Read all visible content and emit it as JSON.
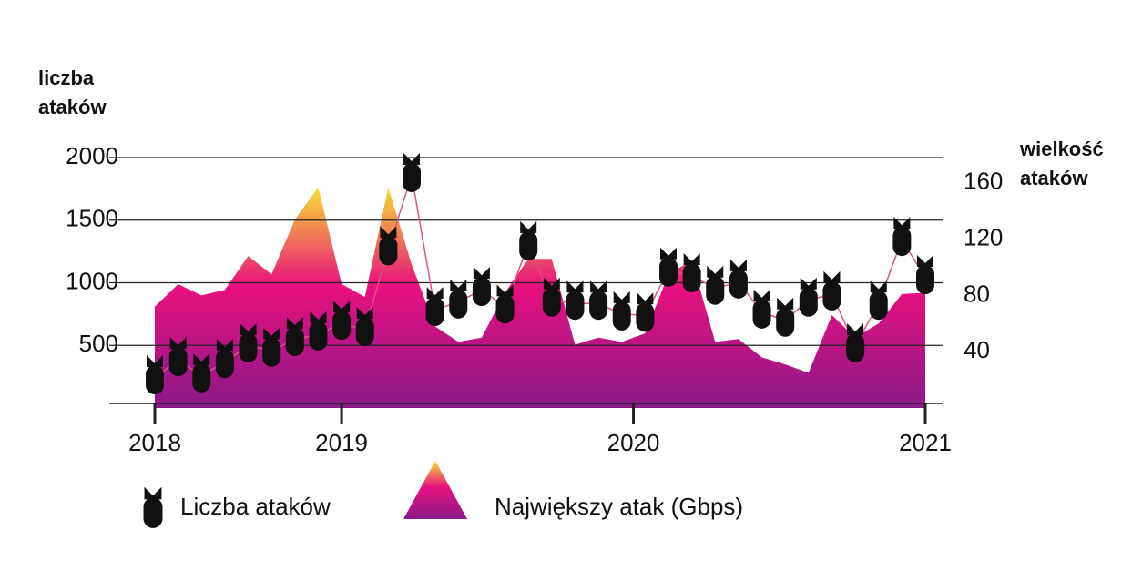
{
  "chart_data": {
    "type": "bar-line-area",
    "y_label": "liczba ataków",
    "y2_label": "wielkość ataków",
    "categories": [
      null,
      null,
      null,
      null,
      null,
      null,
      null,
      null,
      null,
      null,
      null,
      null,
      null,
      null,
      null,
      null,
      null,
      null,
      null,
      null,
      null,
      null,
      null,
      null,
      null,
      null,
      null,
      null,
      null,
      null,
      null,
      null,
      null,
      null
    ],
    "xlim": [
      0,
      33
    ],
    "xticks": [
      {
        "value": 0,
        "label": "2018"
      },
      {
        "value": 8,
        "label": "2019"
      },
      {
        "value": 20.5,
        "label": "2020"
      },
      {
        "value": 33,
        "label": "2021"
      }
    ],
    "ylim": [
      0,
      2000
    ],
    "yticks": [
      500,
      1000,
      1500,
      2000
    ],
    "y2lim": [
      0,
      178
    ],
    "y2ticks": [
      40,
      80,
      120,
      160
    ],
    "grid": true,
    "series": [
      {
        "name": "Liczba ataków",
        "type": "line",
        "color": "#111111",
        "line_color": "#e0508a",
        "values": [
          240,
          385,
          255,
          370,
          495,
          460,
          545,
          590,
          675,
          625,
          1270,
          1855,
          785,
          845,
          945,
          805,
          1310,
          860,
          835,
          835,
          750,
          740,
          1100,
          1055,
          955,
          1005,
          765,
          700,
          860,
          910,
          495,
          835,
          1345,
          1040
        ]
      },
      {
        "name": "Największy atak (Gbps)",
        "type": "area",
        "axis": "y2",
        "colors": [
          "#f7e030",
          "#e8107e",
          "#8a1a8a"
        ],
        "values": [
          72,
          88,
          80,
          84,
          108,
          95,
          134,
          157,
          88,
          79,
          157,
          102,
          58,
          47,
          50,
          82,
          106,
          106,
          45,
          50,
          47,
          53,
          95,
          105,
          47,
          49,
          36,
          31,
          25,
          66,
          50,
          60,
          81,
          82
        ]
      }
    ]
  }
}
